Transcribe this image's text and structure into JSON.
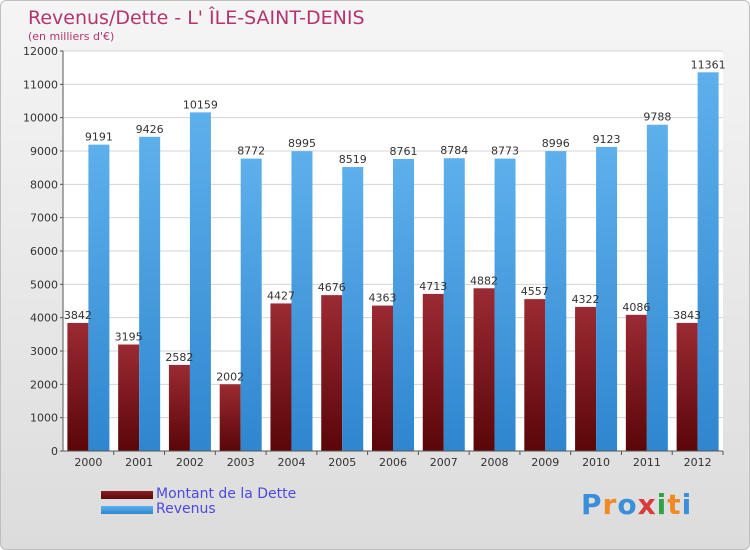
{
  "title": "Revenus/Dette - L' ÎLE-SAINT-DENIS",
  "subtitle": "(en milliers d'€)",
  "brand": {
    "text": "Proxiti",
    "letters": [
      "P",
      "r",
      "o",
      "x",
      "i",
      "t",
      "i"
    ],
    "colors": [
      "#3a8fd8",
      "#f08a24",
      "#3a8fd8",
      "#d93b3b",
      "#2fa34a",
      "#f08a24",
      "#3a8fd8"
    ]
  },
  "colors": {
    "dette": "#6e0d10",
    "revenus": "#4aa3e6",
    "title": "#b3356e",
    "legend_text": "#4a4adf"
  },
  "chart_data": {
    "type": "bar",
    "title": "Revenus/Dette - L' ÎLE-SAINT-DENIS",
    "categories": [
      "2000",
      "2001",
      "2002",
      "2003",
      "2004",
      "2005",
      "2006",
      "2007",
      "2008",
      "2009",
      "2010",
      "2011",
      "2012"
    ],
    "series": [
      {
        "name": "Montant de la Dette",
        "values": [
          3842,
          3195,
          2582,
          2002,
          4427,
          4676,
          4363,
          4713,
          4882,
          4557,
          4322,
          4086,
          3843
        ],
        "labels": [
          "3842",
          "3195",
          "2582",
          "2002",
          "4427",
          "4676",
          "4363",
          "4713",
          "4882",
          "4557",
          "4322",
          "4086",
          "3843"
        ]
      },
      {
        "name": "Revenus",
        "values": [
          9191,
          9426,
          10159,
          8772,
          8995,
          8519,
          8761,
          8784,
          8773,
          8996,
          9123,
          9788,
          11361
        ],
        "labels": [
          "9191",
          "9426",
          "10159",
          "8772",
          "8995",
          "8519",
          "8761",
          "8784",
          "8773",
          "8996",
          "9123",
          "9788",
          "11361"
        ]
      }
    ],
    "ylim": [
      0,
      12000
    ],
    "yticks": [
      "0",
      "1000",
      "2000",
      "3000",
      "4000",
      "5000",
      "6000",
      "7000",
      "8000",
      "9000",
      "10000",
      "11000",
      "12000"
    ],
    "grid": true,
    "legend": "bottom-left"
  }
}
